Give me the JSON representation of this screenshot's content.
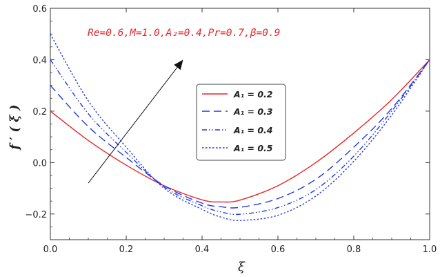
{
  "chart_data": {
    "type": "line",
    "xlabel": "ξ",
    "ylabel": "f ′ ( ξ )",
    "xlim": [
      0.0,
      1.0
    ],
    "ylim": [
      -0.3,
      0.6
    ],
    "xticks": [
      "0.0",
      "0.2",
      "0.4",
      "0.6",
      "0.8",
      "1.0"
    ],
    "xtick_values": [
      0.0,
      0.2,
      0.4,
      0.6,
      0.8,
      1.0
    ],
    "yticks": [
      "−0.2",
      "0.0",
      "0.2",
      "0.4",
      "0.6"
    ],
    "ytick_values": [
      -0.2,
      0.0,
      0.2,
      0.4,
      0.6
    ],
    "grid": false,
    "legend_position": "center",
    "annotation": "Re=0.6,M=1.0,A₂=0.4,Pr=0.7,β=0.9",
    "arrow": {
      "from": [
        0.1,
        -0.08
      ],
      "to": [
        0.35,
        0.4
      ],
      "meaning": "increasing A1"
    },
    "series": [
      {
        "name": "A₁ = 0.2",
        "color": "#e8242b",
        "dash": "solid",
        "x": [
          0.0,
          0.1,
          0.2,
          0.3,
          0.4,
          0.45,
          0.5,
          0.6,
          0.7,
          0.8,
          0.9,
          1.0
        ],
        "y": [
          0.2,
          0.086,
          -0.01,
          -0.09,
          -0.145,
          -0.153,
          -0.146,
          -0.09,
          0.0,
          0.115,
          0.245,
          0.4
        ]
      },
      {
        "name": "A₁ = 0.3",
        "color": "#1f39e6",
        "dash": "long",
        "x": [
          0.0,
          0.1,
          0.2,
          0.3,
          0.4,
          0.45,
          0.5,
          0.6,
          0.7,
          0.8,
          0.9,
          1.0
        ],
        "y": [
          0.3,
          0.14,
          0.02,
          -0.09,
          -0.158,
          -0.172,
          -0.174,
          -0.14,
          -0.065,
          0.06,
          0.21,
          0.4
        ]
      },
      {
        "name": "A₁ = 0.4",
        "color": "#1f39e6",
        "dash": "dashdotdot",
        "x": [
          0.0,
          0.1,
          0.2,
          0.3,
          0.4,
          0.45,
          0.5,
          0.6,
          0.7,
          0.8,
          0.9,
          1.0
        ],
        "y": [
          0.4,
          0.19,
          0.04,
          -0.095,
          -0.168,
          -0.192,
          -0.201,
          -0.175,
          -0.105,
          0.025,
          0.2,
          0.4
        ]
      },
      {
        "name": "A₁ = 0.5",
        "color": "#1f39e6",
        "dash": "dotted",
        "x": [
          0.0,
          0.1,
          0.2,
          0.3,
          0.4,
          0.45,
          0.5,
          0.6,
          0.7,
          0.8,
          0.9,
          1.0
        ],
        "y": [
          0.5,
          0.24,
          0.06,
          -0.1,
          -0.182,
          -0.212,
          -0.225,
          -0.205,
          -0.13,
          0.005,
          0.185,
          0.4
        ]
      }
    ]
  }
}
